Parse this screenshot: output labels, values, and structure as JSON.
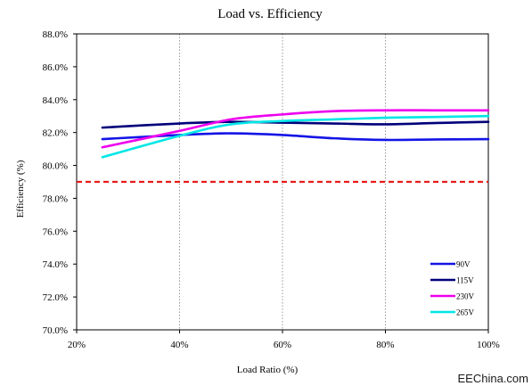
{
  "chart_data": {
    "type": "line",
    "title": "Load vs. Efficiency",
    "xlabel": "Load Ratio (%)",
    "ylabel": "Efficiency (%)",
    "xlim": [
      20,
      100
    ],
    "ylim": [
      70,
      88
    ],
    "x_ticks": [
      20,
      40,
      60,
      80,
      100
    ],
    "x_tick_labels": [
      "20%",
      "40%",
      "60%",
      "80%",
      "100%"
    ],
    "y_ticks": [
      70,
      72,
      74,
      76,
      78,
      80,
      82,
      84,
      86,
      88
    ],
    "y_tick_labels": [
      "70.0%",
      "72.0%",
      "74.0%",
      "76.0%",
      "78.0%",
      "80.0%",
      "82.0%",
      "84.0%",
      "86.0%",
      "88.0%"
    ],
    "grid": {
      "vertical": true,
      "horizontal": false
    },
    "legend_position": "bottom-right",
    "series": [
      {
        "name": "90V",
        "color": "#1414e6",
        "x": [
          25,
          40,
          50,
          60,
          70,
          80,
          90,
          100
        ],
        "values": [
          81.6,
          81.85,
          81.95,
          81.85,
          81.65,
          81.55,
          81.58,
          81.6
        ]
      },
      {
        "name": "115V",
        "color": "#00007a",
        "x": [
          25,
          40,
          50,
          60,
          70,
          80,
          90,
          100
        ],
        "values": [
          82.3,
          82.55,
          82.65,
          82.6,
          82.55,
          82.5,
          82.58,
          82.65
        ]
      },
      {
        "name": "230V",
        "color": "#ee00ee",
        "x": [
          25,
          40,
          50,
          60,
          70,
          80,
          90,
          100
        ],
        "values": [
          81.1,
          82.1,
          82.8,
          83.1,
          83.3,
          83.35,
          83.35,
          83.35
        ]
      },
      {
        "name": "265V",
        "color": "#00e6e6",
        "x": [
          25,
          40,
          50,
          60,
          70,
          80,
          90,
          100
        ],
        "values": [
          80.5,
          81.8,
          82.5,
          82.7,
          82.8,
          82.9,
          82.95,
          83.0
        ]
      }
    ],
    "reference_line": {
      "y": 79.0,
      "color": "#e81a1a",
      "style": "dashed"
    }
  },
  "watermark": "EEChina.com"
}
